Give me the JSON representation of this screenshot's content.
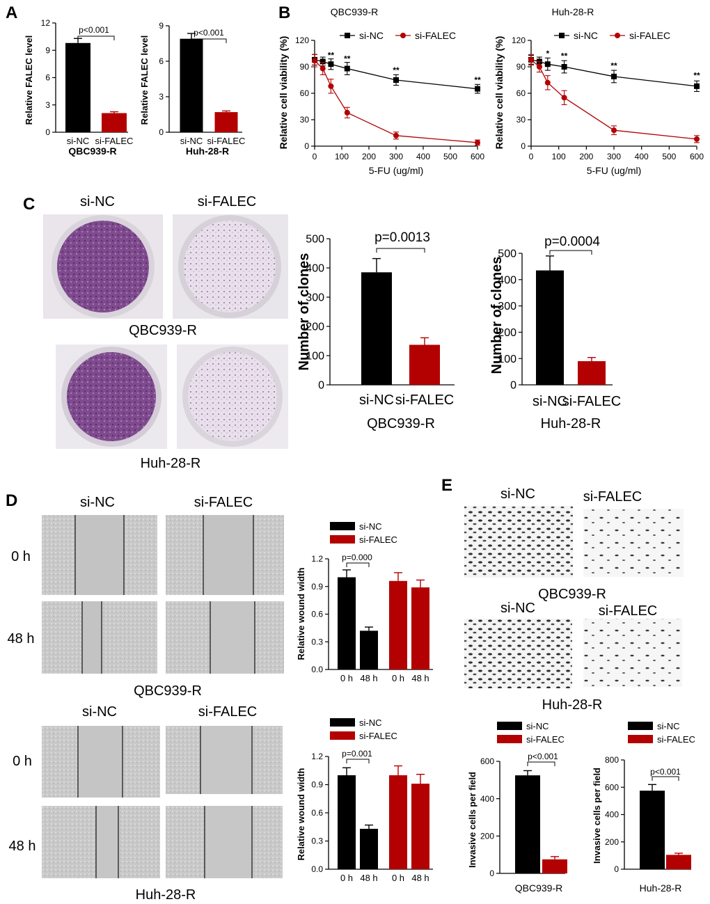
{
  "panel_labels": {
    "A": "A",
    "B": "B",
    "C": "C",
    "D": "D",
    "E": "E"
  },
  "colors": {
    "black": "#000000",
    "red": "#b30000",
    "grey_image": "#c8c8c8",
    "stain": "#7a4a8a"
  },
  "photos": {
    "C_row_labels": [
      "QBC939-R",
      "Huh-28-R"
    ],
    "C_col_labels": [
      "si-NC",
      "si-FALEC"
    ],
    "D_row_labels": [
      "0 h",
      "48 h"
    ],
    "D_col_labels": [
      "si-NC",
      "si-FALEC"
    ],
    "D_captions": [
      "QBC939-R",
      "Huh-28-R"
    ],
    "E_col_labels": [
      "si-NC",
      "si-FALEC"
    ],
    "E_captions": [
      "QBC939-R",
      "Huh-28-R"
    ]
  },
  "chart_data": [
    {
      "id": "A1",
      "type": "bar",
      "categories": [
        "si-NC",
        "si-FALEC"
      ],
      "values": [
        9.8,
        2.1
      ],
      "errors": [
        0.5,
        0.15
      ],
      "colors": [
        "#000000",
        "#b30000"
      ],
      "ylabel": "Relative FALEC level",
      "xlabel": "QBC939-R",
      "ylim": [
        0,
        12
      ],
      "yticks": [
        "0",
        "3",
        "6",
        "9",
        "12"
      ],
      "annotation": "p<0.001"
    },
    {
      "id": "A2",
      "type": "bar",
      "categories": [
        "si-NC",
        "si-FALEC"
      ],
      "values": [
        7.9,
        1.7
      ],
      "errors": [
        0.45,
        0.1
      ],
      "colors": [
        "#000000",
        "#b30000"
      ],
      "ylabel": "Relative FALEC level",
      "xlabel": "Huh-28-R",
      "ylim": [
        0,
        9
      ],
      "yticks": [
        "0",
        "3",
        "6",
        "9"
      ],
      "annotation": "p<0.001"
    },
    {
      "id": "B1",
      "type": "line",
      "title": "QBC939-R",
      "xlabel": "5-FU (ug/ml)",
      "ylabel": "Relative cell viability (%)",
      "xlim": [
        0,
        600
      ],
      "ylim": [
        0,
        120
      ],
      "xticks": [
        "0",
        "100",
        "200",
        "300",
        "400",
        "500",
        "600"
      ],
      "yticks": [
        "0",
        "30",
        "60",
        "90",
        "120"
      ],
      "series": [
        {
          "name": "si-NC",
          "color": "#000000",
          "marker": "square",
          "x": [
            0,
            30,
            60,
            120,
            300,
            600
          ],
          "y": [
            98,
            96,
            93,
            88,
            75,
            65
          ],
          "err": [
            6,
            5,
            6,
            7,
            6,
            5
          ]
        },
        {
          "name": "si-FALEC",
          "color": "#b30000",
          "marker": "circle",
          "x": [
            0,
            30,
            60,
            120,
            300,
            600
          ],
          "y": [
            97,
            88,
            68,
            38,
            12,
            4
          ],
          "err": [
            7,
            7,
            8,
            6,
            4,
            3
          ]
        }
      ],
      "sig": [
        {
          "x": 60,
          "y": 100,
          "text": "**"
        },
        {
          "x": 120,
          "y": 96,
          "text": "**"
        },
        {
          "x": 300,
          "y": 83,
          "text": "**"
        },
        {
          "x": 600,
          "y": 72,
          "text": "**"
        }
      ]
    },
    {
      "id": "B2",
      "type": "line",
      "title": "Huh-28-R",
      "xlabel": "5-FU  (ug/ml)",
      "ylabel": "Relative cell viability (%)",
      "xlim": [
        0,
        600
      ],
      "ylim": [
        0,
        120
      ],
      "xticks": [
        "0",
        "100",
        "200",
        "300",
        "400",
        "500",
        "600"
      ],
      "yticks": [
        "0",
        "30",
        "60",
        "90",
        "120"
      ],
      "series": [
        {
          "name": "si-NC",
          "color": "#000000",
          "marker": "square",
          "x": [
            0,
            30,
            60,
            120,
            300,
            600
          ],
          "y": [
            98,
            96,
            93,
            90,
            79,
            68
          ],
          "err": [
            5,
            5,
            7,
            7,
            7,
            6
          ]
        },
        {
          "name": "si-FALEC",
          "color": "#b30000",
          "marker": "circle",
          "x": [
            0,
            30,
            60,
            120,
            300,
            600
          ],
          "y": [
            98,
            90,
            72,
            55,
            18,
            8
          ],
          "err": [
            6,
            6,
            8,
            8,
            5,
            4
          ]
        }
      ],
      "sig": [
        {
          "x": 60,
          "y": 102,
          "text": "*"
        },
        {
          "x": 120,
          "y": 99,
          "text": "**"
        },
        {
          "x": 300,
          "y": 88,
          "text": "**"
        },
        {
          "x": 600,
          "y": 77,
          "text": "**"
        }
      ]
    },
    {
      "id": "C1",
      "type": "bar",
      "categories": [
        "si-NC",
        "si-FALEC"
      ],
      "values": [
        385,
        137
      ],
      "errors": [
        47,
        24
      ],
      "colors": [
        "#000000",
        "#b30000"
      ],
      "ylabel": "Number of clones",
      "xlabel": "QBC939-R",
      "ylim": [
        0,
        500
      ],
      "yticks": [
        "0",
        "100",
        "200",
        "300",
        "400",
        "500"
      ],
      "annotation": "p=0.0013"
    },
    {
      "id": "C2",
      "type": "bar",
      "categories": [
        "si-NC",
        "si-FALEC"
      ],
      "values": [
        435,
        90
      ],
      "errors": [
        55,
        14
      ],
      "colors": [
        "#000000",
        "#b30000"
      ],
      "ylabel": "Number of clones",
      "xlabel": "Huh-28-R",
      "ylim": [
        0,
        500
      ],
      "yticks": [
        "0",
        "100",
        "200",
        "300",
        "400",
        "500"
      ],
      "annotation": "p=0.0004"
    },
    {
      "id": "D1",
      "type": "bar",
      "categories": [
        "0 h",
        "48 h",
        "0 h",
        "48 h"
      ],
      "values": [
        1.0,
        0.42,
        0.96,
        0.89
      ],
      "errors": [
        0.08,
        0.04,
        0.09,
        0.08
      ],
      "colors": [
        "#000000",
        "#000000",
        "#b30000",
        "#b30000"
      ],
      "ylabel": "Relative wound width",
      "ylim": [
        0,
        1.2
      ],
      "yticks": [
        "0.0",
        "0.3",
        "0.6",
        "0.9",
        "1.2"
      ],
      "annotation": "p=0.000",
      "legend": [
        {
          "name": "si-NC",
          "color": "#000000"
        },
        {
          "name": "si-FALEC",
          "color": "#b30000"
        }
      ]
    },
    {
      "id": "D2",
      "type": "bar",
      "categories": [
        "0 h",
        "48 h",
        "0 h",
        "48 h"
      ],
      "values": [
        1.0,
        0.43,
        1.0,
        0.91
      ],
      "errors": [
        0.08,
        0.04,
        0.1,
        0.1
      ],
      "colors": [
        "#000000",
        "#000000",
        "#b30000",
        "#b30000"
      ],
      "ylabel": "Relative wound width",
      "ylim": [
        0,
        1.2
      ],
      "yticks": [
        "0.0",
        "0.3",
        "0.6",
        "0.9",
        "1.2"
      ],
      "annotation": "p=0.001",
      "legend": [
        {
          "name": "si-NC",
          "color": "#000000"
        },
        {
          "name": "si-FALEC",
          "color": "#b30000"
        }
      ]
    },
    {
      "id": "E1",
      "type": "bar",
      "categories": [
        "",
        ""
      ],
      "values": [
        525,
        75
      ],
      "errors": [
        25,
        15
      ],
      "colors": [
        "#000000",
        "#b30000"
      ],
      "ylabel": "Invasive cells per field",
      "xlabel": "QBC939-R",
      "ylim": [
        0,
        600
      ],
      "yticks": [
        "0",
        "200",
        "400",
        "600"
      ],
      "annotation": "p<0.001",
      "legend": [
        {
          "name": "si-NC",
          "color": "#000000"
        },
        {
          "name": "si-FALEC",
          "color": "#b30000"
        }
      ]
    },
    {
      "id": "E2",
      "type": "bar",
      "categories": [
        "",
        ""
      ],
      "values": [
        575,
        105
      ],
      "errors": [
        45,
        12
      ],
      "colors": [
        "#000000",
        "#b30000"
      ],
      "ylabel": "Invasive cells per field",
      "xlabel": "Huh-28-R",
      "ylim": [
        0,
        800
      ],
      "yticks": [
        "0",
        "200",
        "400",
        "600",
        "800"
      ],
      "annotation": "p<0.001",
      "legend": [
        {
          "name": "si-NC",
          "color": "#000000"
        },
        {
          "name": "si-FALEC",
          "color": "#b30000"
        }
      ]
    }
  ]
}
